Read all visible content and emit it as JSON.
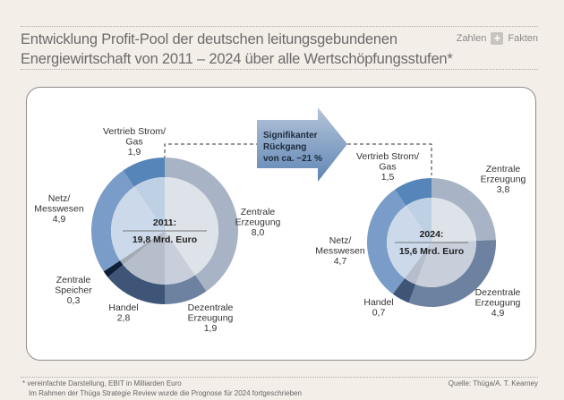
{
  "header": {
    "title_line1": "Entwicklung Profit-Pool der deutschen leitungsgebundenen",
    "title_line2": "Energiewirtschaft von 2011 – 2024 über alle Wertschöpfungsstufen*",
    "brand_left": "Zahlen",
    "brand_icon": "plus-icon",
    "brand_right": "Fakten"
  },
  "arrow": {
    "line1": "Signifikanter",
    "line2": "Rückgang",
    "line3": "von ca. −21 %"
  },
  "chart_data": [
    {
      "type": "pie",
      "variant": "donut",
      "title": "2011:",
      "total_label": "19,8 Mrd. Euro",
      "total": 19.8,
      "unit": "Mrd. Euro (EBIT)",
      "slices": [
        {
          "name": "Zentrale Erzeugung",
          "label_lines": [
            "Zentrale",
            "Erzeugung"
          ],
          "value": 8.0,
          "value_label": "8,0",
          "color": "#a8b3c5"
        },
        {
          "name": "Dezentrale Erzeugung",
          "label_lines": [
            "Dezentrale",
            "Erzeugung"
          ],
          "value": 1.9,
          "value_label": "1,9",
          "color": "#6d81a0"
        },
        {
          "name": "Handel",
          "label_lines": [
            "Handel"
          ],
          "value": 2.8,
          "value_label": "2,8",
          "color": "#3e5577"
        },
        {
          "name": "Zentrale Speicher",
          "label_lines": [
            "Zentrale",
            "Speicher"
          ],
          "value": 0.3,
          "value_label": "0,3",
          "color": "#0f1f3a"
        },
        {
          "name": "Netz/Messwesen",
          "label_lines": [
            "Netz/",
            "Messwesen"
          ],
          "value": 4.9,
          "value_label": "4,9",
          "color": "#7a9cc8"
        },
        {
          "name": "Vertrieb Strom/Gas",
          "label_lines": [
            "Vertrieb Strom/",
            "Gas"
          ],
          "value": 1.9,
          "value_label": "1,9",
          "color": "#5585b9"
        }
      ]
    },
    {
      "type": "pie",
      "variant": "donut",
      "title": "2024:",
      "total_label": "15,6 Mrd. Euro",
      "total": 15.6,
      "unit": "Mrd. Euro (EBIT)",
      "slices": [
        {
          "name": "Zentrale Erzeugung",
          "label_lines": [
            "Zentrale",
            "Erzeugung"
          ],
          "value": 3.8,
          "value_label": "3,8",
          "color": "#a8b3c5"
        },
        {
          "name": "Dezentrale Erzeugung",
          "label_lines": [
            "Dezentrale",
            "Erzeugung"
          ],
          "value": 4.9,
          "value_label": "4,9",
          "color": "#6d81a0"
        },
        {
          "name": "Handel",
          "label_lines": [
            "Handel"
          ],
          "value": 0.7,
          "value_label": "0,7",
          "color": "#3e5577"
        },
        {
          "name": "Netz/Messwesen",
          "label_lines": [
            "Netz/",
            "Messwesen"
          ],
          "value": 4.7,
          "value_label": "4,7",
          "color": "#7a9cc8"
        },
        {
          "name": "Vertrieb Strom/Gas",
          "label_lines": [
            "Vertrieb Strom/",
            "Gas"
          ],
          "value": 1.5,
          "value_label": "1,5",
          "color": "#5585b9"
        }
      ]
    }
  ],
  "footer": {
    "note1": "* vereinfachte Darstellung, EBIT in Milliarden Euro",
    "note2": "Im Rahmen der Thüga Strategie Review wurde die Prognose für 2024 fortgeschrieben",
    "source": "Quelle: Thüga/A. T. Kearney"
  }
}
